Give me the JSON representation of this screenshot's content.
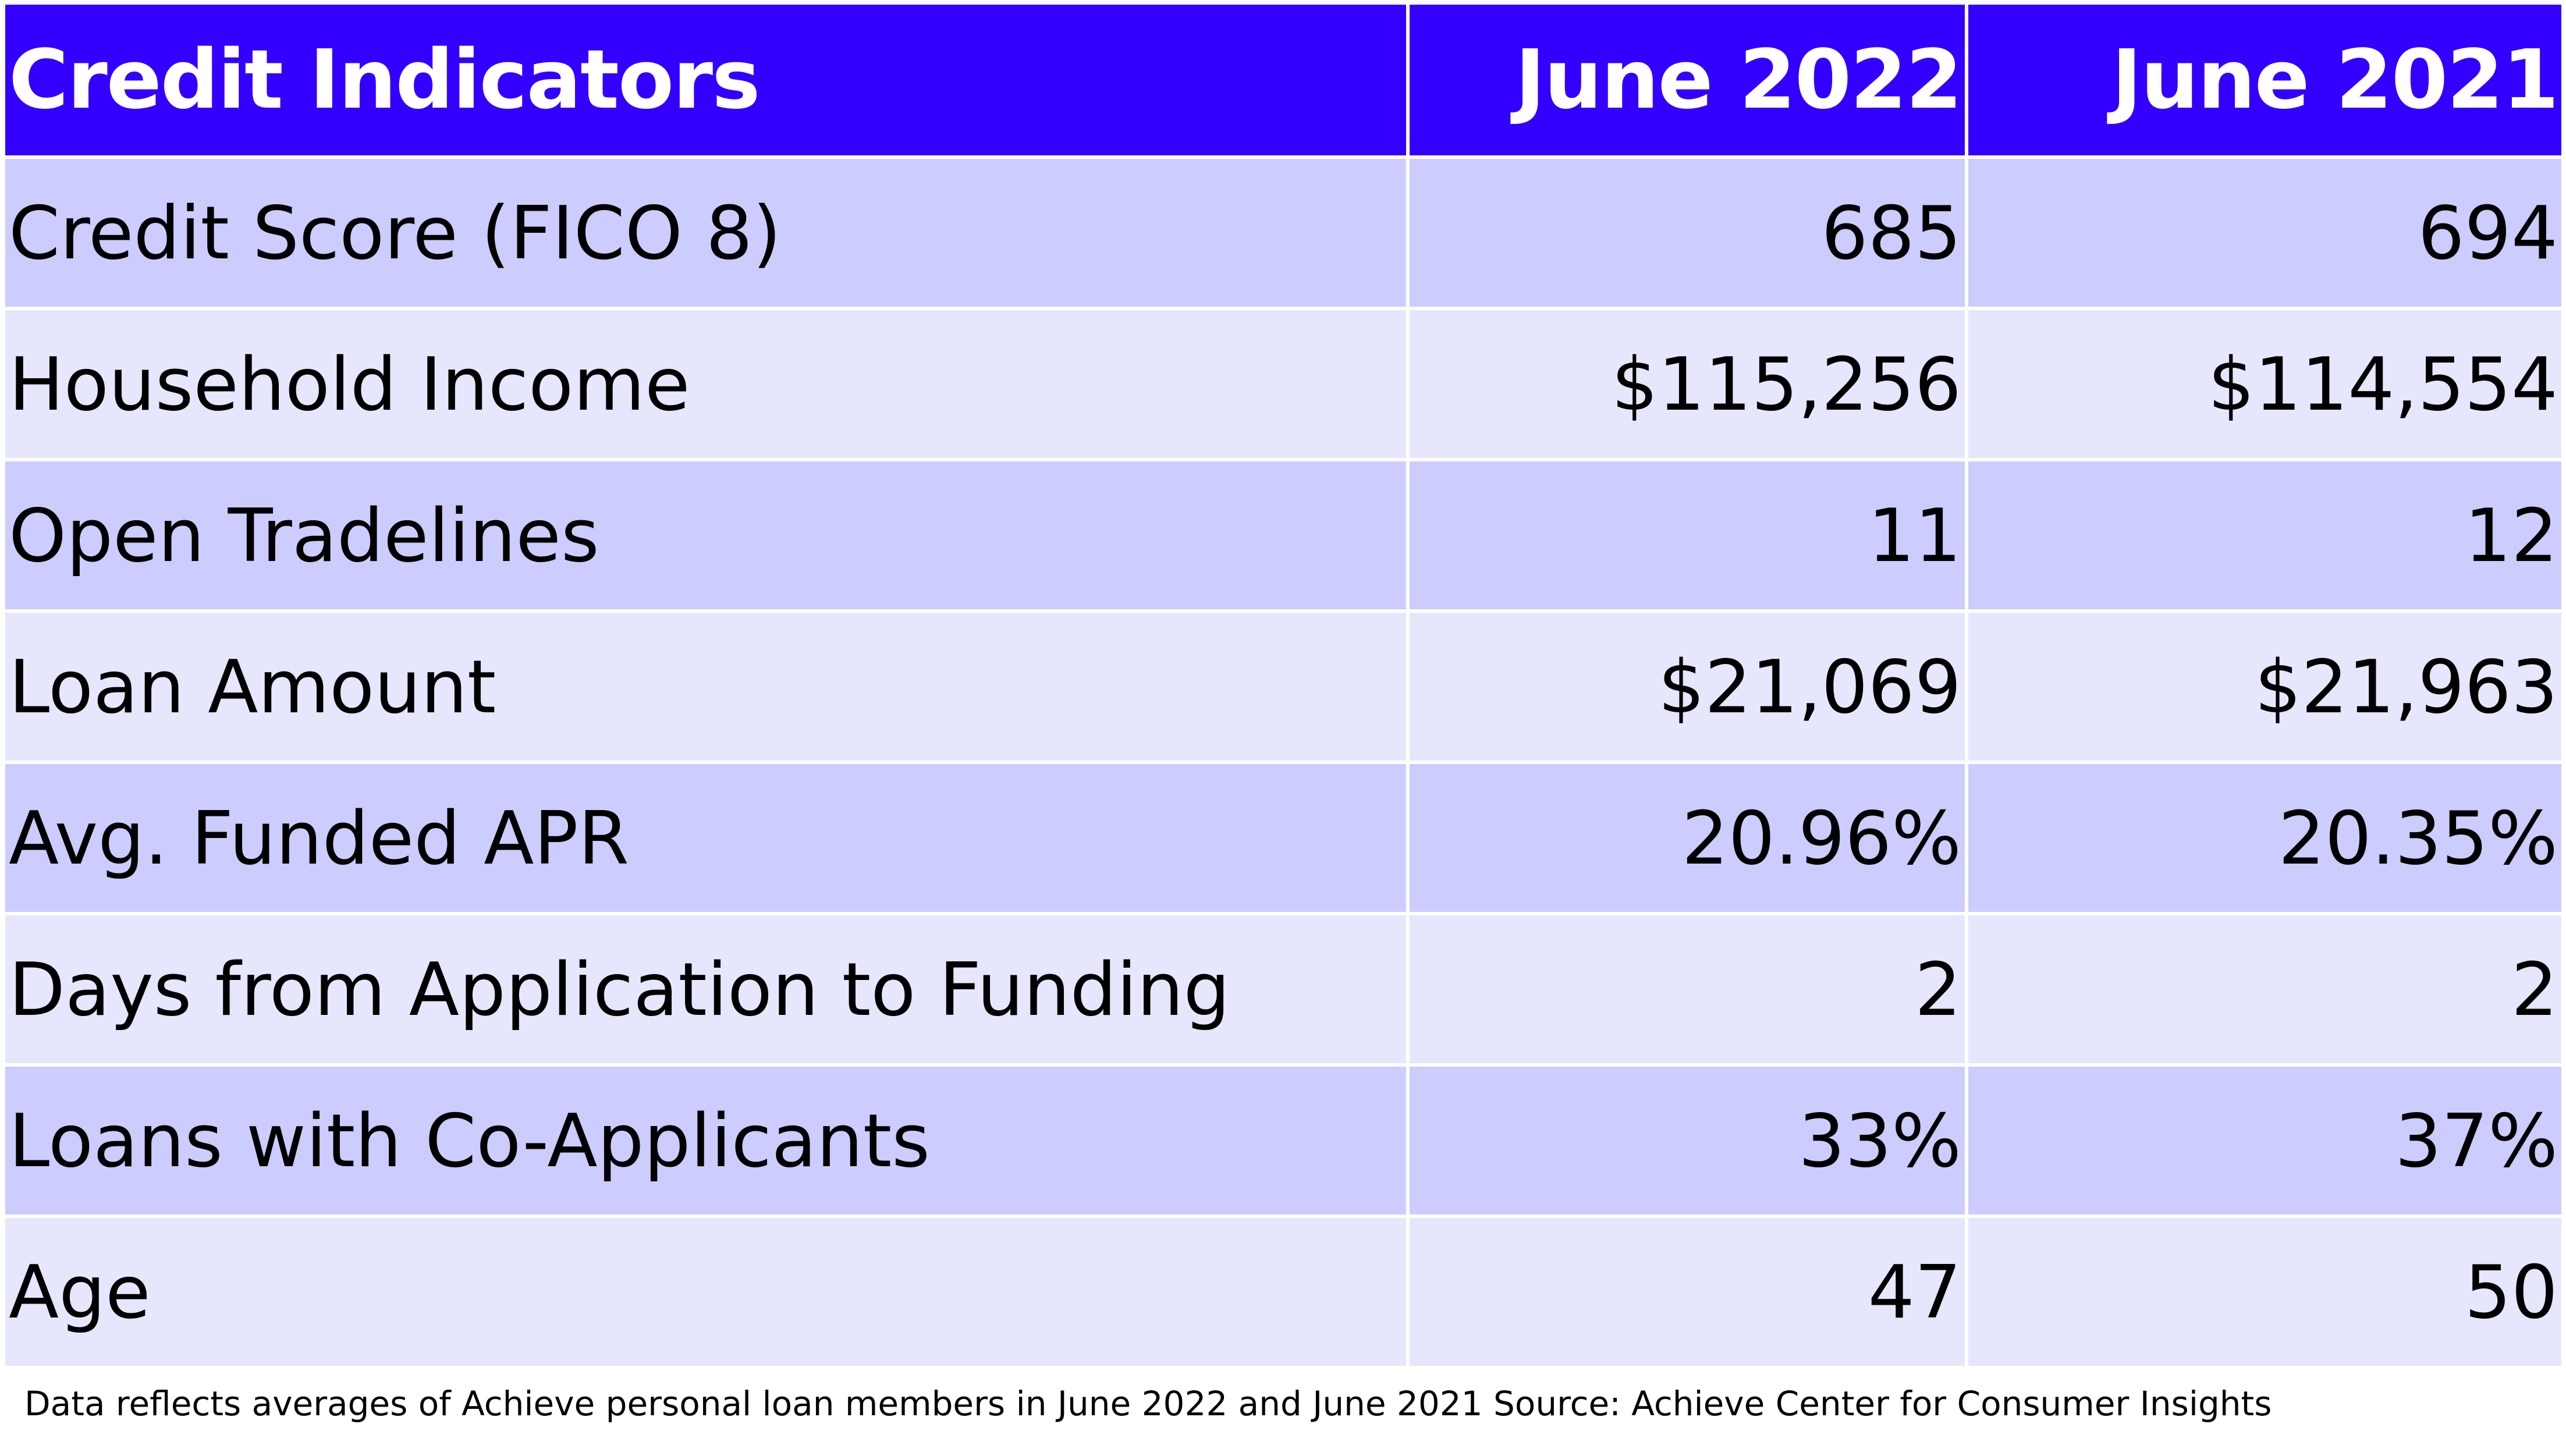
{
  "chart_data": {
    "type": "table",
    "columns": [
      "Credit Indicators",
      "June 2022",
      "June 2021"
    ],
    "rows": [
      {
        "label": "Credit Score (FICO 8)",
        "june_2022": "685",
        "june_2021": "694"
      },
      {
        "label": "Household Income",
        "june_2022": "$115,256",
        "june_2021": "$114,554"
      },
      {
        "label": "Open Tradelines",
        "june_2022": "11",
        "june_2021": "12"
      },
      {
        "label": "Loan Amount",
        "june_2022": "$21,069",
        "june_2021": "$21,963"
      },
      {
        "label": "Avg. Funded APR",
        "june_2022": "20.96%",
        "june_2021": "20.35%"
      },
      {
        "label": "Days from Application to Funding",
        "june_2022": "2",
        "june_2021": "2"
      },
      {
        "label": "Loans with Co-Applicants",
        "june_2022": "33%",
        "june_2021": "37%"
      },
      {
        "label": "Age",
        "june_2022": "47",
        "june_2021": "50"
      }
    ],
    "footnote": "Data reflects averages of Achieve personal loan members in June 2022 and June 2021 Source: Achieve Center for Consumer Insights"
  },
  "colors": {
    "header_bg": "#3300ff",
    "header_text": "#ffffff",
    "row_odd_bg": "#ccccfe",
    "row_even_bg": "#e6e6fd"
  }
}
